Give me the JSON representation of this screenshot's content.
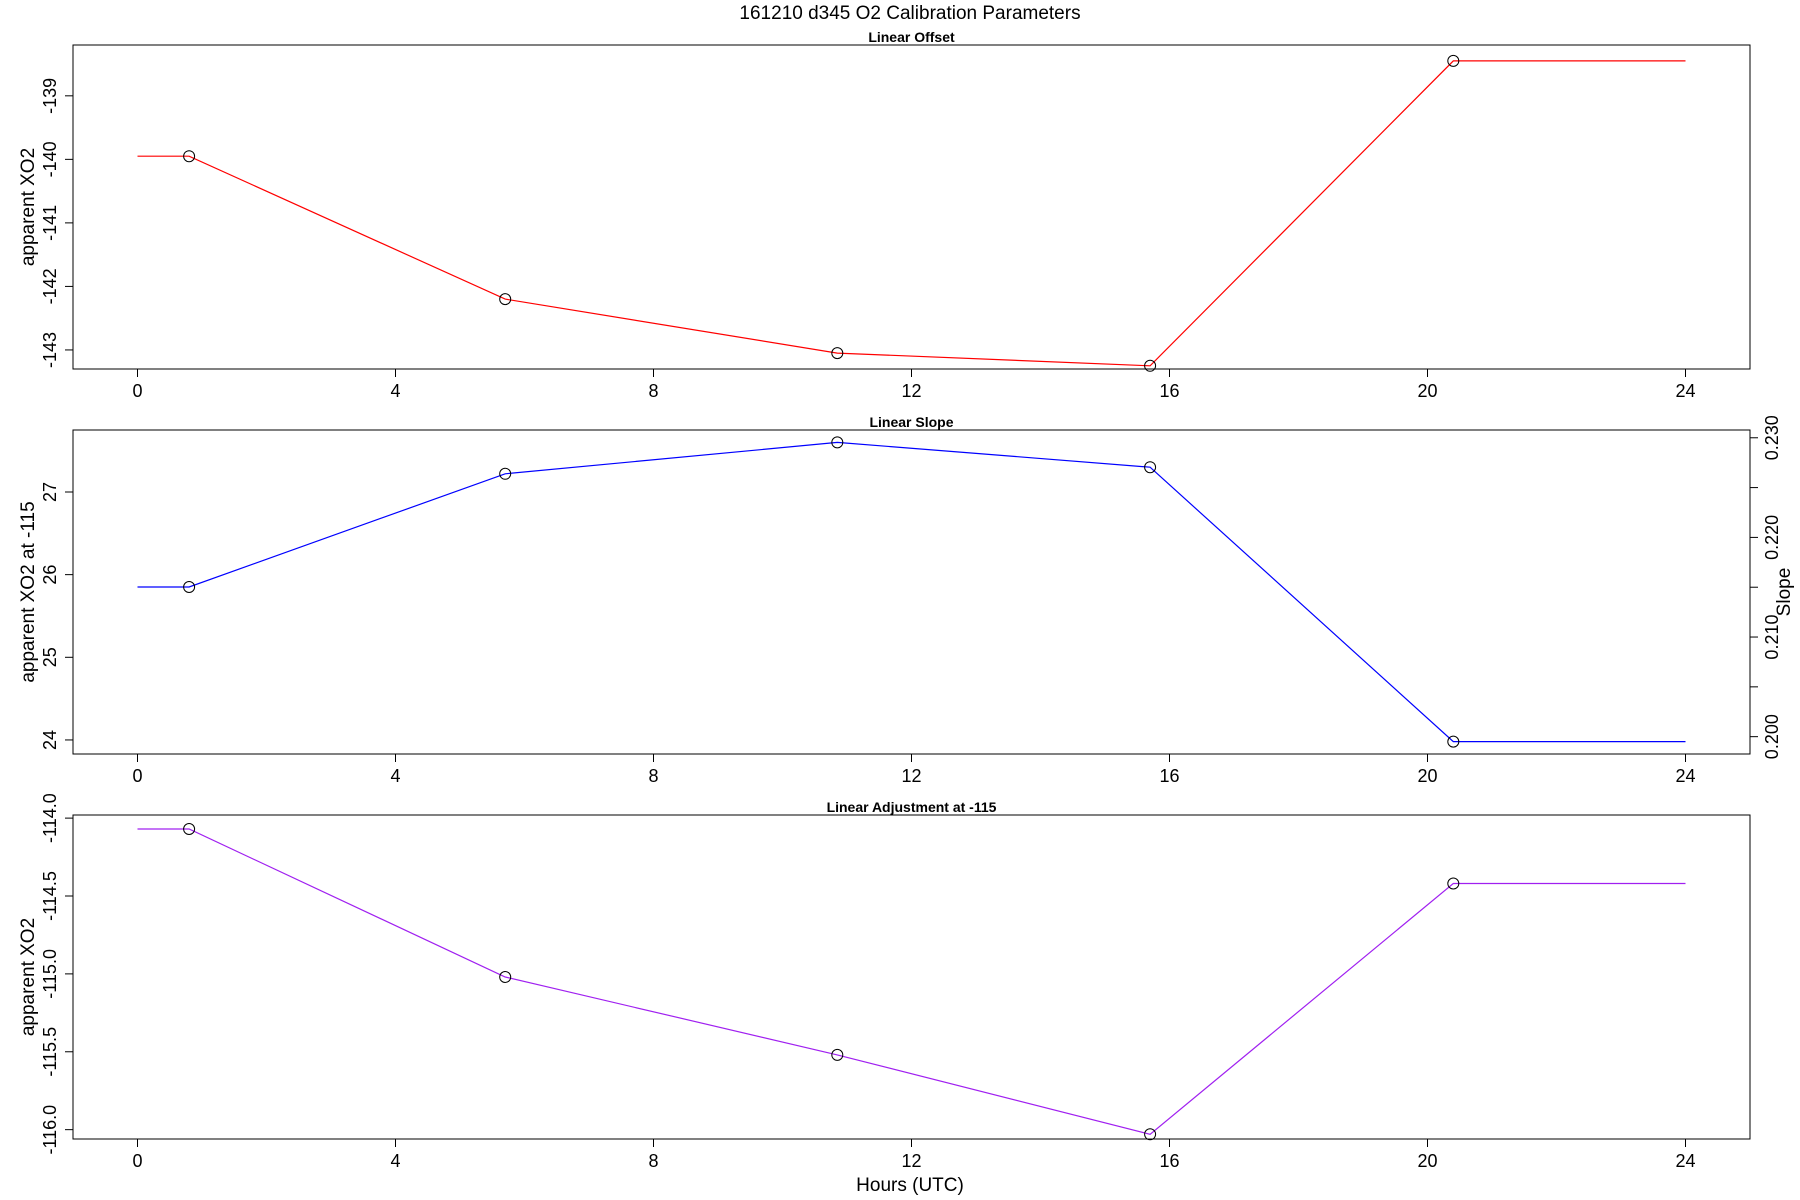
{
  "chart_data": {
    "title": "161210   d345   O2 Calibration Parameters",
    "xlabel": "Hours (UTC)",
    "panels": [
      {
        "type": "line",
        "name": "offset",
        "title": "Linear Offset",
        "ylabel": "apparent XO2",
        "color": "#ff0000",
        "xlim": [
          -1.0,
          25.0
        ],
        "ylim": [
          -143.3,
          -138.2
        ],
        "xticks": [
          0,
          4,
          8,
          12,
          16,
          20,
          24
        ],
        "yticks": [
          -143,
          -142,
          -141,
          -140,
          -139
        ],
        "x": [
          0,
          0.8,
          5.7,
          10.85,
          15.7,
          20.4,
          24
        ],
        "y": [
          -139.95,
          -139.95,
          -142.2,
          -143.05,
          -143.25,
          -138.45,
          -138.45
        ],
        "markers": [
          1,
          2,
          3,
          4,
          5
        ]
      },
      {
        "type": "line",
        "name": "slope",
        "title": "Linear Slope",
        "ylabel": "apparent XO2 at -115",
        "ylabel_right": "Slope",
        "color": "#0000ff",
        "xlim": [
          -1.0,
          25.0
        ],
        "ylim": [
          23.83,
          27.75
        ],
        "xticks": [
          0,
          4,
          8,
          12,
          16,
          20,
          24
        ],
        "yticks": [
          24,
          25,
          26,
          27
        ],
        "y2lim": [
          0.19826,
          0.23078
        ],
        "y2ticks": [
          0.2,
          0.205,
          0.21,
          0.215,
          0.22,
          0.225,
          0.23
        ],
        "y2ticklabels": [
          "0.200",
          "",
          "0.210",
          "",
          "0.220",
          "",
          "0.230"
        ],
        "x": [
          0,
          0.8,
          5.7,
          10.85,
          15.7,
          20.4,
          24
        ],
        "y": [
          25.85,
          25.85,
          27.22,
          27.6,
          27.3,
          23.98,
          23.98
        ],
        "markers": [
          1,
          2,
          3,
          4,
          5
        ]
      },
      {
        "type": "line",
        "name": "adjustment",
        "title": "Linear Adjustment at -115",
        "ylabel": "apparent XO2",
        "color": "#a020f0",
        "xlim": [
          -1.0,
          25.0
        ],
        "ylim": [
          -116.06,
          -113.98
        ],
        "xticks": [
          0,
          4,
          8,
          12,
          16,
          20,
          24
        ],
        "yticks": [
          -116.0,
          -115.5,
          -115.0,
          -114.5,
          -114.0
        ],
        "yticklabels": [
          "-116.0",
          "-115.5",
          "-115.0",
          "-114.5",
          "-114.0"
        ],
        "x": [
          0,
          0.8,
          5.7,
          10.85,
          15.7,
          20.4,
          24
        ],
        "y": [
          -114.07,
          -114.07,
          -115.02,
          -115.52,
          -116.03,
          -114.42,
          -114.42
        ],
        "markers": [
          1,
          2,
          3,
          4,
          5
        ]
      }
    ]
  }
}
